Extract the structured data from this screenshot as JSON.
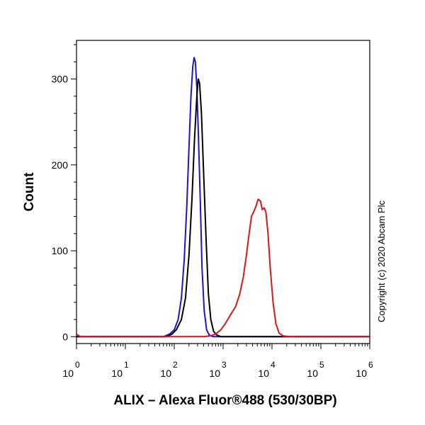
{
  "chart_data": {
    "type": "line",
    "xlabel": "ALIX – Alexa Fluor®488 (530/30BP)",
    "ylabel": "Count",
    "x_scale": "log",
    "xlim": [
      1,
      1000000
    ],
    "ylim": [
      -8,
      345
    ],
    "x_ticks": [
      {
        "base": "10",
        "exp": "0",
        "value": 1
      },
      {
        "base": "10",
        "exp": "1",
        "value": 10
      },
      {
        "base": "10",
        "exp": "2",
        "value": 100
      },
      {
        "base": "10",
        "exp": "3",
        "value": 1000
      },
      {
        "base": "10",
        "exp": "4",
        "value": 10000
      },
      {
        "base": "10",
        "exp": "5",
        "value": 100000
      },
      {
        "base": "10",
        "exp": "6",
        "value": 1000000
      }
    ],
    "y_ticks": [
      0,
      100,
      200,
      300
    ],
    "grid": false,
    "series": [
      {
        "color": "#1a14d8",
        "points": [
          [
            1,
            0
          ],
          [
            60,
            0
          ],
          [
            80,
            3
          ],
          [
            100,
            8
          ],
          [
            120,
            20
          ],
          [
            140,
            45
          ],
          [
            160,
            90
          ],
          [
            180,
            150
          ],
          [
            200,
            220
          ],
          [
            220,
            280
          ],
          [
            240,
            315
          ],
          [
            255,
            325
          ],
          [
            270,
            320
          ],
          [
            290,
            290
          ],
          [
            310,
            240
          ],
          [
            340,
            160
          ],
          [
            370,
            80
          ],
          [
            410,
            30
          ],
          [
            460,
            8
          ],
          [
            520,
            2
          ],
          [
            620,
            0
          ],
          [
            1000000,
            0
          ]
        ]
      },
      {
        "color": "#000000",
        "points": [
          [
            1,
            0
          ],
          [
            70,
            0
          ],
          [
            90,
            3
          ],
          [
            110,
            8
          ],
          [
            140,
            20
          ],
          [
            170,
            45
          ],
          [
            200,
            95
          ],
          [
            230,
            160
          ],
          [
            260,
            230
          ],
          [
            290,
            280
          ],
          [
            310,
            300
          ],
          [
            330,
            295
          ],
          [
            360,
            260
          ],
          [
            400,
            190
          ],
          [
            450,
            110
          ],
          [
            500,
            50
          ],
          [
            560,
            20
          ],
          [
            640,
            6
          ],
          [
            740,
            2
          ],
          [
            900,
            0
          ],
          [
            1000000,
            0
          ]
        ]
      },
      {
        "color": "#e01414",
        "points": [
          [
            1,
            3
          ],
          [
            1.2,
            0
          ],
          [
            400,
            0
          ],
          [
            550,
            1
          ],
          [
            700,
            3
          ],
          [
            900,
            8
          ],
          [
            1100,
            15
          ],
          [
            1400,
            25
          ],
          [
            1800,
            35
          ],
          [
            2200,
            50
          ],
          [
            2600,
            70
          ],
          [
            3000,
            95
          ],
          [
            3400,
            120
          ],
          [
            3800,
            140
          ],
          [
            4200,
            145
          ],
          [
            4700,
            152
          ],
          [
            5200,
            160
          ],
          [
            5800,
            158
          ],
          [
            6300,
            148
          ],
          [
            6900,
            150
          ],
          [
            7500,
            145
          ],
          [
            8300,
            120
          ],
          [
            9200,
            80
          ],
          [
            10500,
            40
          ],
          [
            12000,
            15
          ],
          [
            14000,
            4
          ],
          [
            17000,
            1
          ],
          [
            22000,
            0
          ],
          [
            1000000,
            0
          ]
        ]
      }
    ]
  },
  "annotations": {
    "copyright": "Copyright (c) 2020 Abcam Plc"
  }
}
